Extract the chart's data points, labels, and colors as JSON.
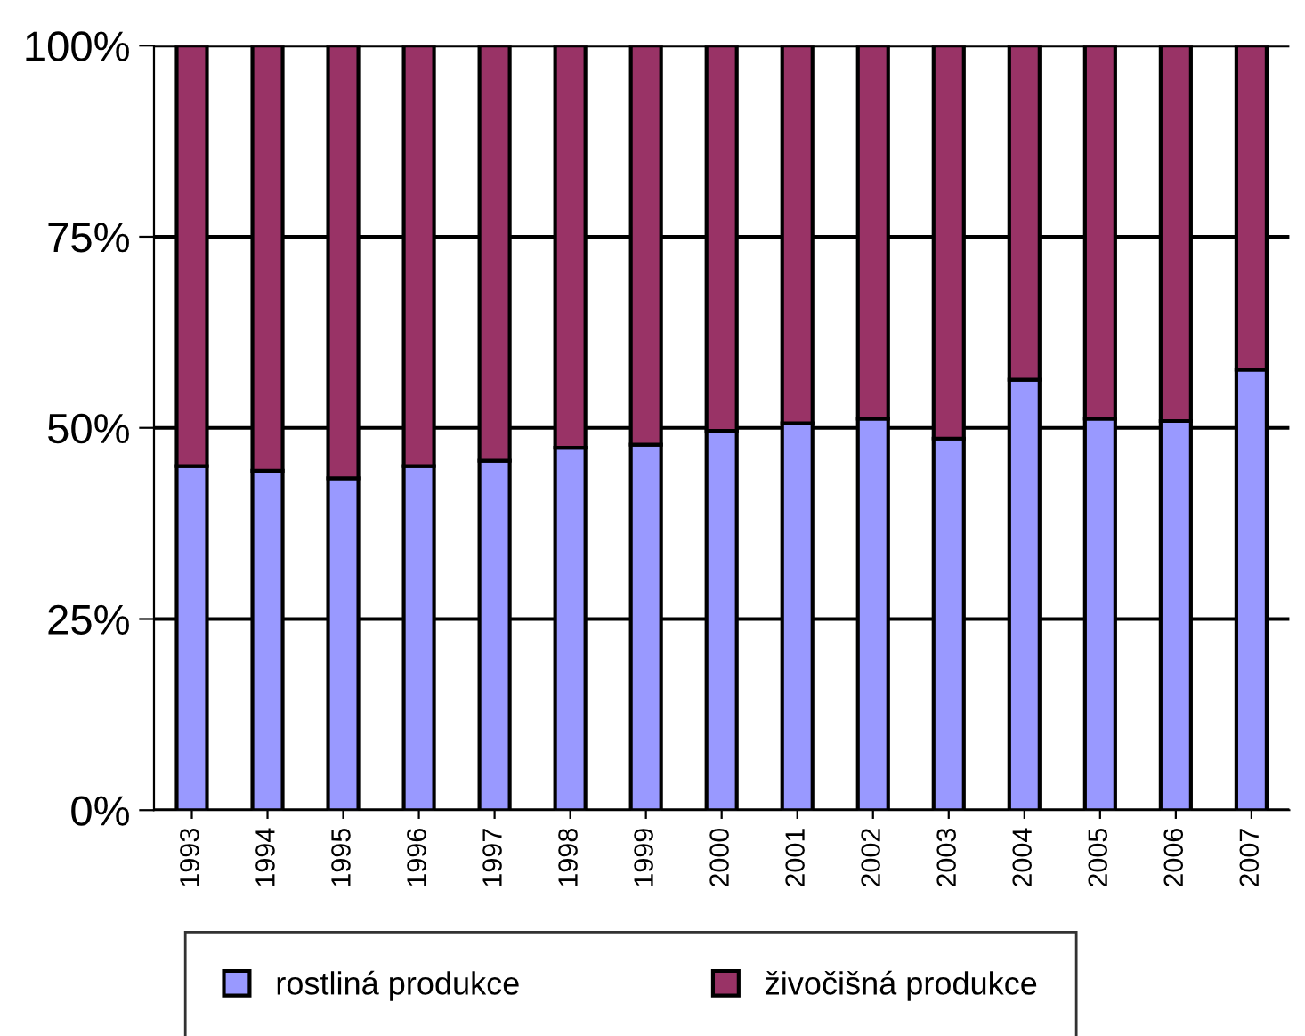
{
  "chart_data": {
    "type": "bar",
    "stacked": true,
    "categories": [
      "1993",
      "1994",
      "1995",
      "1996",
      "1997",
      "1998",
      "1999",
      "2000",
      "2001",
      "2002",
      "2003",
      "2004",
      "2005",
      "2006",
      "2007"
    ],
    "series": [
      {
        "name": "rostliná produkce",
        "color": "#9999ff",
        "values": [
          45.0,
          44.4,
          43.4,
          45.0,
          45.7,
          47.4,
          47.8,
          49.6,
          50.6,
          51.2,
          48.6,
          56.3,
          51.2,
          50.9,
          57.6
        ]
      },
      {
        "name": "živočišná produkce",
        "color": "#993366",
        "values": [
          55.0,
          55.6,
          56.6,
          55.0,
          54.3,
          52.6,
          52.2,
          50.4,
          49.4,
          48.8,
          51.4,
          43.7,
          48.8,
          49.1,
          42.4
        ]
      }
    ],
    "ylim": [
      0,
      100
    ],
    "yticks": [
      {
        "value": 0,
        "label": "0%"
      },
      {
        "value": 25,
        "label": "25%"
      },
      {
        "value": 50,
        "label": "50%"
      },
      {
        "value": 75,
        "label": "75%"
      },
      {
        "value": 100,
        "label": "100%"
      }
    ],
    "grid": "y",
    "legend": "bottom"
  }
}
